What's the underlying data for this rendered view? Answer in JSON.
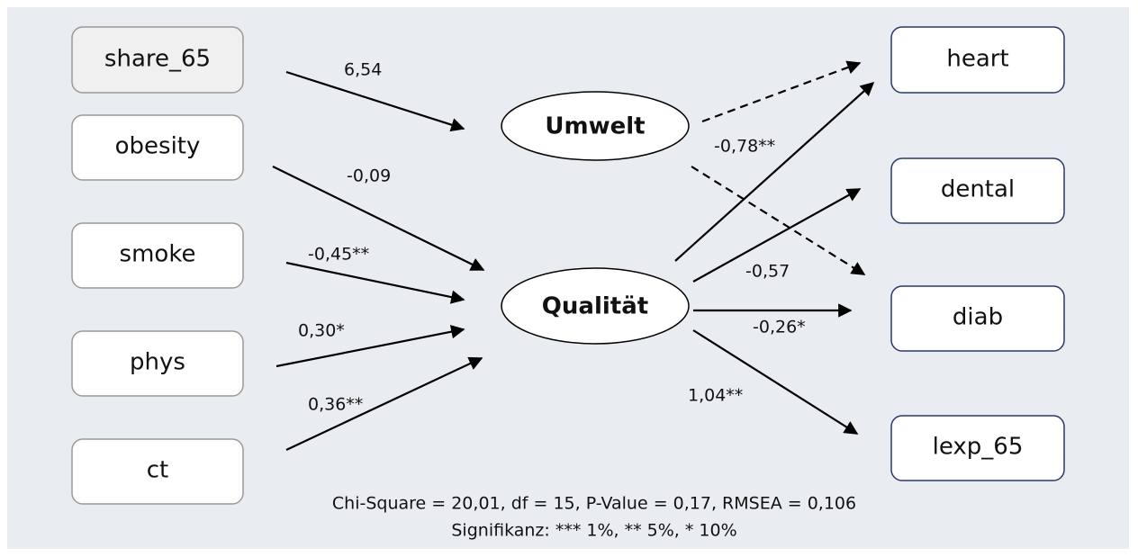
{
  "left_nodes": [
    "share_65",
    "obesity",
    "smoke",
    "phys",
    "ct"
  ],
  "latent_nodes": [
    "Umwelt",
    "Qualität"
  ],
  "right_nodes": [
    "heart",
    "dental",
    "diab",
    "lexp_65"
  ],
  "path_labels": [
    "6,54",
    "-0,09",
    "-0,45**",
    "0,30*",
    "0,36**",
    "-0,78**",
    "-0,57",
    "-0,26*",
    "1,04**"
  ],
  "footer": {
    "fit": "Chi-Square = 20,01, df = 15, P-Value = 0,17, RMSEA = 0,106",
    "significance": "Signifikanz: *** 1%, ** 5%, * 10%"
  }
}
